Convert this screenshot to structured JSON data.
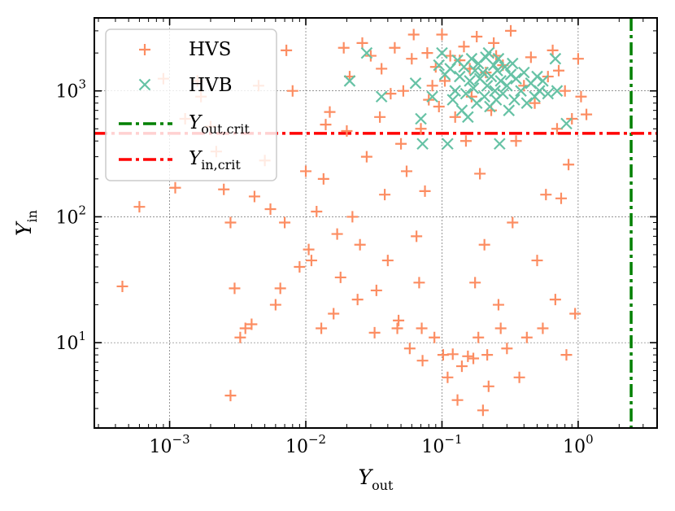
{
  "chart_data": {
    "type": "scatter",
    "xscale": "log",
    "yscale": "log",
    "xlim": [
      0.00028,
      3.8
    ],
    "ylim": [
      2.1,
      3800
    ],
    "x_ticks": [
      {
        "value": 0.001,
        "base": "10",
        "exp": "−3"
      },
      {
        "value": 0.01,
        "base": "10",
        "exp": "−2"
      },
      {
        "value": 0.1,
        "base": "10",
        "exp": "−1"
      },
      {
        "value": 1,
        "base": "10",
        "exp": "0"
      }
    ],
    "y_ticks": [
      {
        "value": 10,
        "base": "10",
        "exp": "1"
      },
      {
        "value": 100,
        "base": "10",
        "exp": "2"
      },
      {
        "value": 1000,
        "base": "10",
        "exp": "3"
      }
    ],
    "xlabel": {
      "main": "Y",
      "sub": "out"
    },
    "ylabel": {
      "main": "Y",
      "sub": "in"
    },
    "grid": true,
    "legend_position": "top-left",
    "legend": [
      {
        "key": "hvs",
        "label": "HVS",
        "marker": "plus",
        "color": "#fc8d62"
      },
      {
        "key": "hvb",
        "label": "HVB",
        "marker": "x",
        "color": "#66c2a5"
      },
      {
        "key": "yout_crit",
        "label_main": "Y",
        "label_sub": "out,crit",
        "line": "dashdot",
        "color": "#008000"
      },
      {
        "key": "yin_crit",
        "label_main": "Y",
        "label_sub": "in,crit",
        "line": "dashdot",
        "color": "#ff0000"
      }
    ],
    "reference_lines": {
      "yout_crit": {
        "orientation": "vertical",
        "value": 2.45,
        "color": "#008000"
      },
      "yin_crit": {
        "orientation": "horizontal",
        "value": 460,
        "color": "#ff0000"
      }
    },
    "series": [
      {
        "name": "HVS",
        "marker": "plus",
        "color": "#fc8d62",
        "points": [
          [
            0.00045,
            28
          ],
          [
            0.0006,
            120
          ],
          [
            0.0009,
            1250
          ],
          [
            0.0011,
            170
          ],
          [
            0.0013,
            600
          ],
          [
            0.0016,
            1200
          ],
          [
            0.0017,
            900
          ],
          [
            0.002,
            520
          ],
          [
            0.0022,
            330
          ],
          [
            0.0025,
            165
          ],
          [
            0.0028,
            90
          ],
          [
            0.0028,
            3.8
          ],
          [
            0.003,
            27
          ],
          [
            0.0033,
            11
          ],
          [
            0.0036,
            13
          ],
          [
            0.004,
            14
          ],
          [
            0.0042,
            145
          ],
          [
            0.0045,
            1100
          ],
          [
            0.005,
            280
          ],
          [
            0.0055,
            115
          ],
          [
            0.006,
            20
          ],
          [
            0.0065,
            27
          ],
          [
            0.007,
            90
          ],
          [
            0.0072,
            2100
          ],
          [
            0.008,
            1000
          ],
          [
            0.009,
            40
          ],
          [
            0.01,
            230
          ],
          [
            0.0105,
            55
          ],
          [
            0.011,
            45
          ],
          [
            0.012,
            110
          ],
          [
            0.013,
            13
          ],
          [
            0.0135,
            200
          ],
          [
            0.014,
            540
          ],
          [
            0.015,
            680
          ],
          [
            0.016,
            17
          ],
          [
            0.017,
            73
          ],
          [
            0.018,
            33
          ],
          [
            0.019,
            2200
          ],
          [
            0.02,
            480
          ],
          [
            0.021,
            1300
          ],
          [
            0.022,
            100
          ],
          [
            0.024,
            22
          ],
          [
            0.025,
            60
          ],
          [
            0.026,
            2400
          ],
          [
            0.028,
            300
          ],
          [
            0.03,
            1900
          ],
          [
            0.032,
            12
          ],
          [
            0.033,
            26
          ],
          [
            0.035,
            620
          ],
          [
            0.036,
            1500
          ],
          [
            0.038,
            150
          ],
          [
            0.04,
            45
          ],
          [
            0.042,
            950
          ],
          [
            0.045,
            2200
          ],
          [
            0.047,
            13
          ],
          [
            0.048,
            15
          ],
          [
            0.05,
            380
          ],
          [
            0.052,
            1000
          ],
          [
            0.055,
            230
          ],
          [
            0.058,
            9
          ],
          [
            0.06,
            1800
          ],
          [
            0.062,
            2800
          ],
          [
            0.065,
            70
          ],
          [
            0.068,
            30
          ],
          [
            0.07,
            500
          ],
          [
            0.071,
            13
          ],
          [
            0.072,
            7.2
          ],
          [
            0.075,
            160
          ],
          [
            0.078,
            2000
          ],
          [
            0.08,
            850
          ],
          [
            0.085,
            1100
          ],
          [
            0.088,
            11
          ],
          [
            0.09,
            1550
          ],
          [
            0.095,
            750
          ],
          [
            0.1,
            2800
          ],
          [
            0.102,
            8
          ],
          [
            0.105,
            1200
          ],
          [
            0.11,
            5.3
          ],
          [
            0.115,
            1900
          ],
          [
            0.12,
            8.1
          ],
          [
            0.125,
            620
          ],
          [
            0.13,
            3.5
          ],
          [
            0.135,
            1750
          ],
          [
            0.14,
            6.5
          ],
          [
            0.145,
            2250
          ],
          [
            0.15,
            400
          ],
          [
            0.155,
            7.8
          ],
          [
            0.16,
            1500
          ],
          [
            0.165,
            900
          ],
          [
            0.17,
            7.5
          ],
          [
            0.175,
            30
          ],
          [
            0.18,
            2700
          ],
          [
            0.185,
            11
          ],
          [
            0.19,
            220
          ],
          [
            0.2,
            2.9
          ],
          [
            0.205,
            60
          ],
          [
            0.21,
            1400
          ],
          [
            0.215,
            8
          ],
          [
            0.22,
            4.5
          ],
          [
            0.23,
            700
          ],
          [
            0.24,
            2400
          ],
          [
            0.25,
            1900
          ],
          [
            0.26,
            20
          ],
          [
            0.27,
            13
          ],
          [
            0.28,
            1600
          ],
          [
            0.3,
            9
          ],
          [
            0.32,
            3000
          ],
          [
            0.33,
            90
          ],
          [
            0.35,
            400
          ],
          [
            0.37,
            5.3
          ],
          [
            0.4,
            1100
          ],
          [
            0.42,
            11
          ],
          [
            0.45,
            1850
          ],
          [
            0.48,
            800
          ],
          [
            0.5,
            45
          ],
          [
            0.55,
            13
          ],
          [
            0.58,
            150
          ],
          [
            0.6,
            1300
          ],
          [
            0.65,
            2100
          ],
          [
            0.68,
            22
          ],
          [
            0.7,
            500
          ],
          [
            0.72,
            1450
          ],
          [
            0.75,
            140
          ],
          [
            0.8,
            1000
          ],
          [
            0.82,
            8
          ],
          [
            0.85,
            260
          ],
          [
            0.9,
            600
          ],
          [
            0.95,
            17
          ],
          [
            1.0,
            1800
          ],
          [
            1.05,
            900
          ],
          [
            1.15,
            650
          ]
        ]
      },
      {
        "name": "HVB",
        "marker": "x",
        "color": "#66c2a5",
        "points": [
          [
            0.021,
            1200
          ],
          [
            0.028,
            2000
          ],
          [
            0.036,
            900
          ],
          [
            0.064,
            1150
          ],
          [
            0.07,
            600
          ],
          [
            0.072,
            380
          ],
          [
            0.085,
            900
          ],
          [
            0.095,
            1600
          ],
          [
            0.1,
            2000
          ],
          [
            0.105,
            1350
          ],
          [
            0.11,
            380
          ],
          [
            0.115,
            1500
          ],
          [
            0.12,
            850
          ],
          [
            0.125,
            1000
          ],
          [
            0.13,
            1750
          ],
          [
            0.135,
            1300
          ],
          [
            0.14,
            700
          ],
          [
            0.145,
            1550
          ],
          [
            0.15,
            950
          ],
          [
            0.155,
            620
          ],
          [
            0.16,
            1200
          ],
          [
            0.165,
            1800
          ],
          [
            0.17,
            1050
          ],
          [
            0.175,
            1450
          ],
          [
            0.18,
            800
          ],
          [
            0.185,
            1650
          ],
          [
            0.19,
            1250
          ],
          [
            0.2,
            1400
          ],
          [
            0.205,
            900
          ],
          [
            0.21,
            1850
          ],
          [
            0.215,
            1100
          ],
          [
            0.22,
            2000
          ],
          [
            0.225,
            750
          ],
          [
            0.23,
            1300
          ],
          [
            0.24,
            1600
          ],
          [
            0.245,
            1000
          ],
          [
            0.25,
            850
          ],
          [
            0.255,
            1450
          ],
          [
            0.26,
            1800
          ],
          [
            0.265,
            380
          ],
          [
            0.27,
            1200
          ],
          [
            0.28,
            950
          ],
          [
            0.29,
            1550
          ],
          [
            0.3,
            1100
          ],
          [
            0.31,
            700
          ],
          [
            0.32,
            1350
          ],
          [
            0.33,
            1650
          ],
          [
            0.34,
            850
          ],
          [
            0.35,
            1250
          ],
          [
            0.38,
            1000
          ],
          [
            0.4,
            1400
          ],
          [
            0.42,
            800
          ],
          [
            0.45,
            1150
          ],
          [
            0.48,
            900
          ],
          [
            0.5,
            1300
          ],
          [
            0.52,
            1000
          ],
          [
            0.55,
            1200
          ],
          [
            0.6,
            950
          ],
          [
            0.68,
            1800
          ],
          [
            0.7,
            1000
          ],
          [
            0.82,
            550
          ]
        ]
      }
    ]
  }
}
